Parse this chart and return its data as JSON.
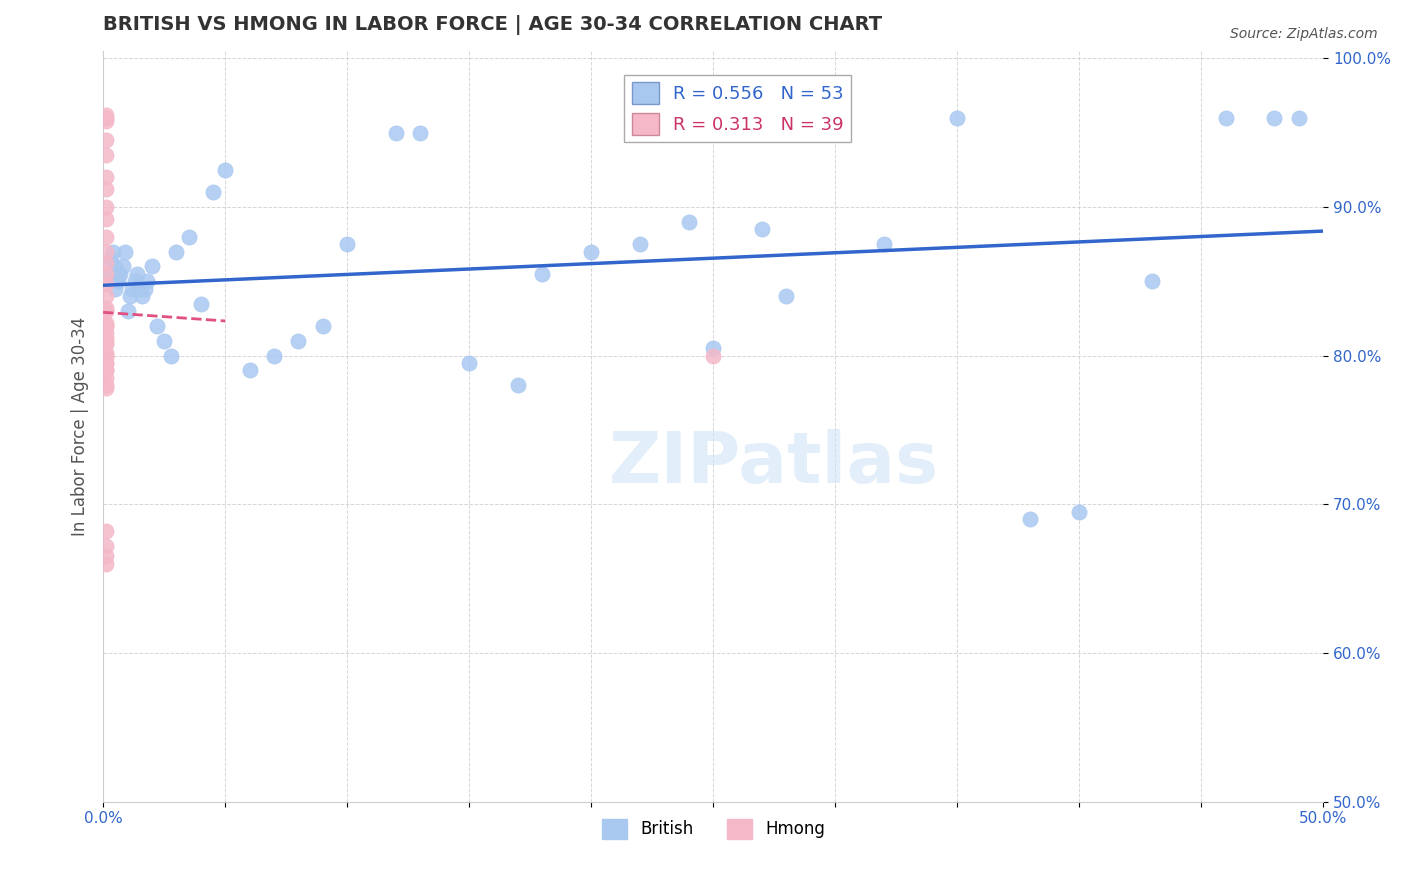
{
  "title": "BRITISH VS HMONG IN LABOR FORCE | AGE 30-34 CORRELATION CHART",
  "source": "Source: ZipAtlas.com",
  "xlabel_bottom": "",
  "ylabel": "In Labor Force | Age 30-34",
  "xlim": [
    0.0,
    0.5
  ],
  "ylim": [
    0.5,
    1.005
  ],
  "xticks": [
    0.0,
    0.05,
    0.1,
    0.15,
    0.2,
    0.25,
    0.3,
    0.35,
    0.4,
    0.45,
    0.5
  ],
  "yticks": [
    0.5,
    0.6,
    0.7,
    0.8,
    0.9,
    1.0
  ],
  "ytick_labels": [
    "50.0%",
    "60.0%",
    "70.0%",
    "80.0%",
    "90.0%",
    "100.0%"
  ],
  "xtick_labels": [
    "0.0%",
    "",
    "",
    "",
    "",
    "",
    "",
    "",
    "",
    "",
    "50.0%"
  ],
  "british_R": 0.556,
  "british_N": 53,
  "hmong_R": 0.313,
  "hmong_N": 39,
  "british_color": "#a8c8f0",
  "hmong_color": "#f4b8c8",
  "british_line_color": "#3366cc",
  "hmong_line_color": "#e05080",
  "british_x": [
    0.002,
    0.003,
    0.004,
    0.005,
    0.005,
    0.006,
    0.006,
    0.007,
    0.008,
    0.009,
    0.01,
    0.011,
    0.012,
    0.013,
    0.014,
    0.015,
    0.016,
    0.017,
    0.018,
    0.02,
    0.022,
    0.025,
    0.028,
    0.03,
    0.035,
    0.04,
    0.045,
    0.05,
    0.06,
    0.07,
    0.08,
    0.09,
    0.1,
    0.12,
    0.13,
    0.15,
    0.17,
    0.18,
    0.2,
    0.22,
    0.24,
    0.25,
    0.27,
    0.28,
    0.3,
    0.32,
    0.35,
    0.38,
    0.4,
    0.43,
    0.46,
    0.48,
    0.49
  ],
  "british_y": [
    0.855,
    0.865,
    0.87,
    0.845,
    0.86,
    0.855,
    0.85,
    0.855,
    0.86,
    0.87,
    0.83,
    0.84,
    0.845,
    0.85,
    0.855,
    0.845,
    0.84,
    0.845,
    0.85,
    0.86,
    0.82,
    0.81,
    0.8,
    0.87,
    0.88,
    0.835,
    0.91,
    0.925,
    0.79,
    0.8,
    0.81,
    0.82,
    0.875,
    0.95,
    0.95,
    0.795,
    0.78,
    0.855,
    0.87,
    0.875,
    0.89,
    0.805,
    0.885,
    0.84,
    0.96,
    0.875,
    0.96,
    0.69,
    0.695,
    0.85,
    0.96,
    0.96,
    0.96
  ],
  "hmong_x": [
    0.001,
    0.001,
    0.001,
    0.001,
    0.001,
    0.001,
    0.001,
    0.001,
    0.001,
    0.001,
    0.001,
    0.001,
    0.001,
    0.001,
    0.001,
    0.001,
    0.001,
    0.001,
    0.001,
    0.001,
    0.001,
    0.001,
    0.001,
    0.001,
    0.001,
    0.001,
    0.001,
    0.001,
    0.001,
    0.001,
    0.001,
    0.001,
    0.001,
    0.001,
    0.001,
    0.001,
    0.001,
    0.001,
    0.25
  ],
  "hmong_y": [
    0.962,
    0.96,
    0.958,
    0.945,
    0.935,
    0.92,
    0.912,
    0.9,
    0.892,
    0.88,
    0.87,
    0.862,
    0.855,
    0.848,
    0.84,
    0.832,
    0.822,
    0.812,
    0.802,
    0.795,
    0.785,
    0.778,
    0.83,
    0.82,
    0.81,
    0.8,
    0.79,
    0.78,
    0.815,
    0.808,
    0.8,
    0.795,
    0.79,
    0.682,
    0.672,
    0.665,
    0.66,
    0.82,
    0.8
  ],
  "watermark": "ZIPatlas",
  "background_color": "#ffffff",
  "grid_color": "#cccccc"
}
